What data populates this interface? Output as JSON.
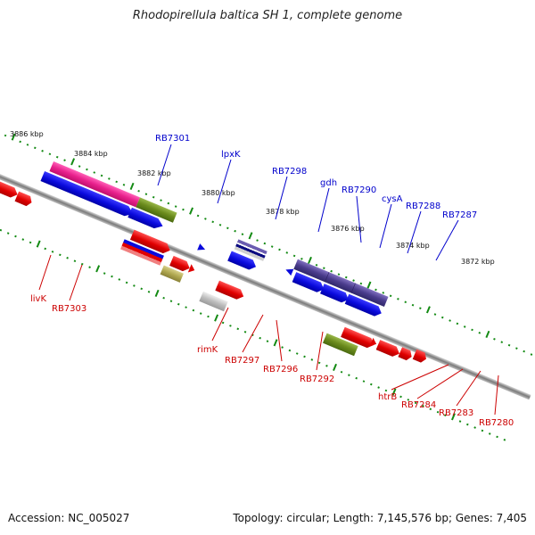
{
  "title": "Rhodopirellula baltica SH 1, complete genome",
  "footer": {
    "accession": "Accession: NC_005027",
    "summary": "Topology: circular; Length: 7,145,576 bp; Genes: 7,405"
  },
  "scale_labels": [
    "3886 kbp",
    "3884 kbp",
    "3882 kbp",
    "3880 kbp",
    "3878 kbp",
    "3876 kbp",
    "3874 kbp",
    "3872 kbp"
  ],
  "gene_labels": {
    "top": [
      "RB7301",
      "lpxK",
      "RB7298",
      "gdh",
      "RB7290",
      "cysA",
      "RB7288",
      "RB7287"
    ],
    "bottom": [
      "livK",
      "RB7303",
      "rimK",
      "RB7297",
      "RB7296",
      "RB7292",
      "htrB",
      "RB7284",
      "RB7283",
      "RB7280"
    ]
  },
  "colors": {
    "forward_label": "#0000cc",
    "reverse_label": "#cc0000",
    "backbone": "#8a8a8a",
    "tick": "#138a13",
    "cds_blue": "#0a0adc",
    "cds_red": "#e00000",
    "cds_pink": "#e8208c",
    "cds_olive": "#6a8a1c",
    "cds_purple": "#4a3c8c",
    "cds_khaki": "#b0a850",
    "cds_gray": "#b8b8b8"
  }
}
